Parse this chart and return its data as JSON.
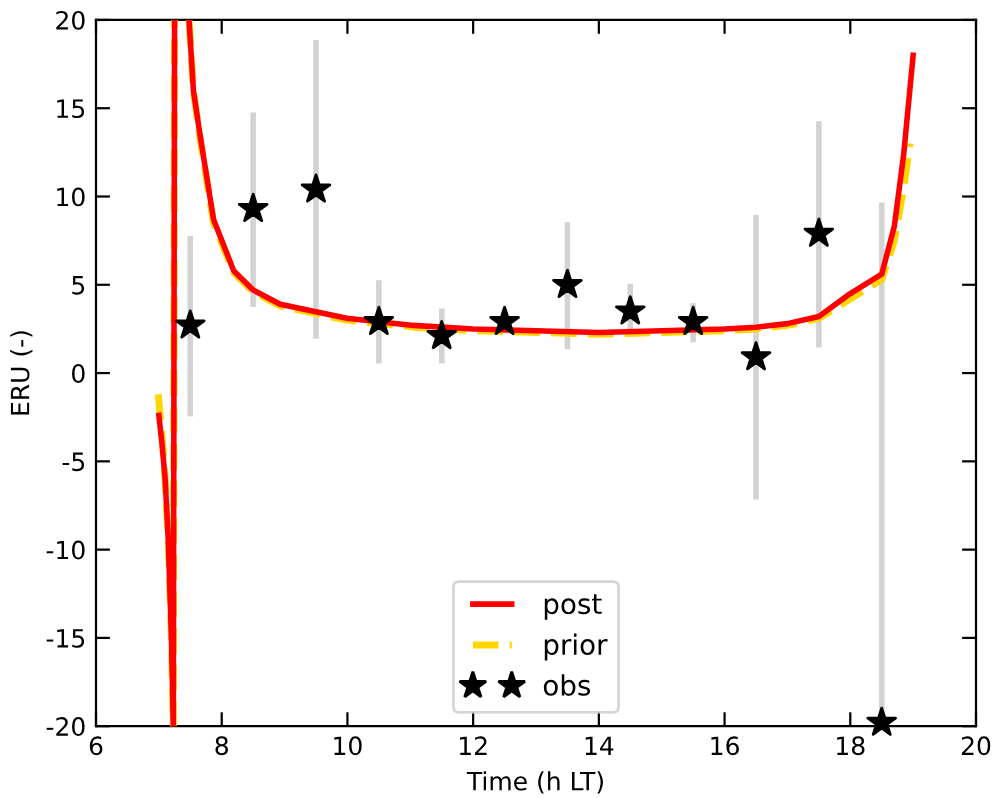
{
  "chart_data": {
    "type": "line",
    "xlabel": "Time (h LT)",
    "ylabel": "ERU (-)",
    "xlim": [
      6,
      20
    ],
    "ylim": [
      -20,
      20
    ],
    "xticks": [
      6,
      8,
      10,
      12,
      14,
      16,
      18,
      20
    ],
    "yticks": [
      -20,
      -15,
      -10,
      -5,
      0,
      5,
      10,
      15,
      20
    ],
    "grid": false,
    "legend": "bottom",
    "series": [
      {
        "name": "post",
        "color": "#ff0000",
        "line_style": "solid",
        "marker": "none",
        "x": [
          7.0,
          7.05,
          7.1,
          7.15,
          7.2,
          7.23,
          7.25,
          7.35,
          7.48,
          7.55,
          7.65,
          7.87,
          8.19,
          8.5,
          8.93,
          9.99,
          11.05,
          12,
          13,
          14,
          15,
          16,
          16.5,
          17,
          17.5,
          18,
          18.5,
          18.7,
          18.85,
          19.0
        ],
        "values": [
          -2.4,
          -4,
          -6,
          -9.5,
          -15,
          -20,
          20,
          null,
          20,
          16,
          13.6,
          8.7,
          5.8,
          4.7,
          3.9,
          3.1,
          2.7,
          2.5,
          2.4,
          2.3,
          2.4,
          2.5,
          2.6,
          2.8,
          3.2,
          4.5,
          5.6,
          8.3,
          12.4,
          18
        ]
      },
      {
        "name": "prior",
        "color": "#ffd700",
        "line_style": "dashed",
        "marker": "none",
        "x": [
          6.99,
          7.05,
          7.1,
          7.15,
          7.2,
          7.23,
          7.25,
          7.35,
          7.48,
          7.55,
          7.65,
          7.87,
          8.19,
          8.5,
          8.93,
          9.99,
          11.05,
          12,
          13,
          14,
          15,
          16,
          16.5,
          17,
          17.5,
          18,
          18.5,
          18.7,
          18.85,
          18.95
        ],
        "values": [
          -1.2,
          -3.5,
          -6,
          -9.5,
          -15,
          -20,
          20,
          null,
          20,
          16,
          13.4,
          8.5,
          5.7,
          4.6,
          3.8,
          3.0,
          2.6,
          2.4,
          2.3,
          2.2,
          2.3,
          2.4,
          2.5,
          2.7,
          3.1,
          4.2,
          5.3,
          7.5,
          10.5,
          13
        ]
      },
      {
        "name": "obs",
        "type": "scatter",
        "color": "#000000",
        "marker": "star",
        "x": [
          7.5,
          8.5,
          9.5,
          10.5,
          11.5,
          12.5,
          13.5,
          14.5,
          15.5,
          16.5,
          17.5,
          18.5
        ],
        "values": [
          2.7,
          9.3,
          10.4,
          2.9,
          2.1,
          2.9,
          5.0,
          3.5,
          2.9,
          0.9,
          7.9,
          -19.8
        ],
        "errors": [
          [
            -2.3,
            7.6
          ],
          [
            3.9,
            14.6
          ],
          [
            2.1,
            18.7
          ],
          [
            0.7,
            5.1
          ],
          [
            0.7,
            3.5
          ],
          [
            2.4,
            3.4
          ],
          [
            1.5,
            8.4
          ],
          [
            2.2,
            4.9
          ],
          [
            1.9,
            3.8
          ],
          [
            -7.0,
            8.8
          ],
          [
            1.6,
            14.1
          ],
          [
            -20,
            9.5
          ]
        ]
      }
    ]
  }
}
